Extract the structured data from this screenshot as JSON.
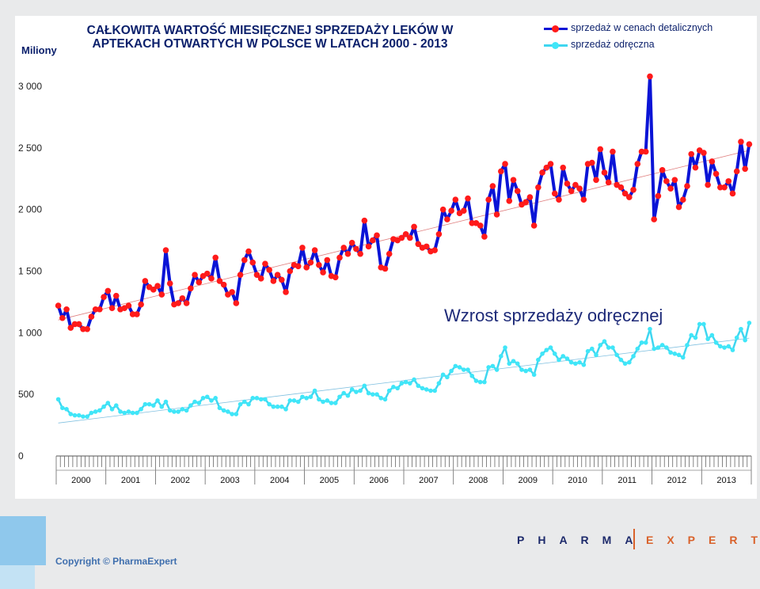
{
  "header": {
    "unit": "Miliony",
    "title_line1": "CAŁKOWITA WARTOŚĆ MIESIĘCZNEJ SPRZEDAŻY LEKÓW W",
    "title_line2": "APTEKACH OTWARTYCH W POLSCE W LATACH 2000 - 2013"
  },
  "annotation": "Wzrost sprzedaży odręcznej",
  "footer": {
    "copyright": "Copyright © PharmaExpert",
    "brand_left": "PHARMA",
    "brand_right": "EXPERT"
  },
  "chart_data": {
    "type": "line",
    "ylim": [
      0,
      3000
    ],
    "yticks": [
      "0",
      "500",
      "1 000",
      "1 500",
      "2 000",
      "2 500",
      "3 000"
    ],
    "years": [
      "2000",
      "2001",
      "2002",
      "2003",
      "2004",
      "2005",
      "2006",
      "2007",
      "2008",
      "2009",
      "2010",
      "2011",
      "2012",
      "2013"
    ],
    "x_interval": "monthly",
    "x_start": "2000-01",
    "x_end": "2013-12",
    "legend_placement": "top-right",
    "grid": false,
    "series": [
      {
        "name": "sprzedaż w cenach detalicznych",
        "color": "#0a14d6",
        "marker_color": "#ff1a1a",
        "values": [
          1220,
          1120,
          1190,
          1040,
          1070,
          1070,
          1030,
          1030,
          1130,
          1190,
          1190,
          1290,
          1340,
          1200,
          1300,
          1190,
          1200,
          1220,
          1150,
          1150,
          1230,
          1420,
          1370,
          1350,
          1380,
          1310,
          1670,
          1400,
          1230,
          1240,
          1280,
          1240,
          1360,
          1470,
          1410,
          1460,
          1480,
          1440,
          1610,
          1420,
          1390,
          1310,
          1330,
          1240,
          1470,
          1590,
          1660,
          1570,
          1470,
          1440,
          1560,
          1510,
          1420,
          1470,
          1430,
          1330,
          1500,
          1550,
          1540,
          1690,
          1530,
          1570,
          1670,
          1550,
          1490,
          1590,
          1460,
          1450,
          1610,
          1690,
          1640,
          1730,
          1680,
          1640,
          1910,
          1700,
          1750,
          1790,
          1530,
          1520,
          1640,
          1760,
          1750,
          1770,
          1800,
          1770,
          1860,
          1720,
          1690,
          1700,
          1660,
          1670,
          1800,
          2000,
          1920,
          1990,
          2080,
          1970,
          1990,
          2090,
          1890,
          1890,
          1870,
          1780,
          2080,
          2190,
          1960,
          2310,
          2370,
          2070,
          2240,
          2150,
          2040,
          2060,
          2100,
          1870,
          2180,
          2300,
          2340,
          2370,
          2130,
          2080,
          2340,
          2210,
          2150,
          2200,
          2170,
          2080,
          2370,
          2380,
          2240,
          2490,
          2300,
          2220,
          2470,
          2200,
          2180,
          2130,
          2100,
          2160,
          2370,
          2470,
          2470,
          3080,
          1920,
          2110,
          2320,
          2230,
          2170,
          2240,
          2020,
          2080,
          2190,
          2450,
          2340,
          2480,
          2460,
          2200,
          2390,
          2290,
          2180,
          2180,
          2230,
          2130,
          2310,
          2550,
          2330,
          2530
        ]
      },
      {
        "name": "sprzedaż odręczna",
        "color": "#3fd6f0",
        "marker_color": "#40e6f8",
        "values": [
          460,
          390,
          380,
          340,
          330,
          330,
          320,
          320,
          350,
          360,
          370,
          400,
          430,
          380,
          410,
          360,
          350,
          360,
          350,
          350,
          380,
          420,
          420,
          410,
          450,
          400,
          440,
          370,
          360,
          360,
          380,
          370,
          410,
          440,
          430,
          470,
          480,
          450,
          470,
          390,
          370,
          360,
          340,
          340,
          420,
          440,
          420,
          470,
          470,
          460,
          460,
          420,
          400,
          400,
          400,
          380,
          450,
          450,
          440,
          480,
          470,
          480,
          530,
          460,
          440,
          450,
          430,
          430,
          480,
          510,
          490,
          540,
          520,
          530,
          570,
          510,
          500,
          500,
          470,
          460,
          530,
          560,
          550,
          590,
          600,
          590,
          620,
          570,
          550,
          540,
          530,
          530,
          590,
          660,
          640,
          690,
          730,
          720,
          700,
          700,
          650,
          610,
          600,
          600,
          720,
          730,
          700,
          810,
          880,
          750,
          770,
          750,
          700,
          690,
          700,
          660,
          780,
          830,
          860,
          880,
          830,
          780,
          810,
          790,
          760,
          750,
          760,
          740,
          850,
          870,
          820,
          900,
          930,
          880,
          880,
          820,
          780,
          750,
          760,
          810,
          870,
          920,
          920,
          1030,
          870,
          880,
          900,
          880,
          840,
          830,
          820,
          800,
          900,
          980,
          960,
          1070,
          1070,
          950,
          980,
          920,
          890,
          880,
          890,
          860,
          960,
          1030,
          940,
          1080
        ]
      }
    ]
  }
}
